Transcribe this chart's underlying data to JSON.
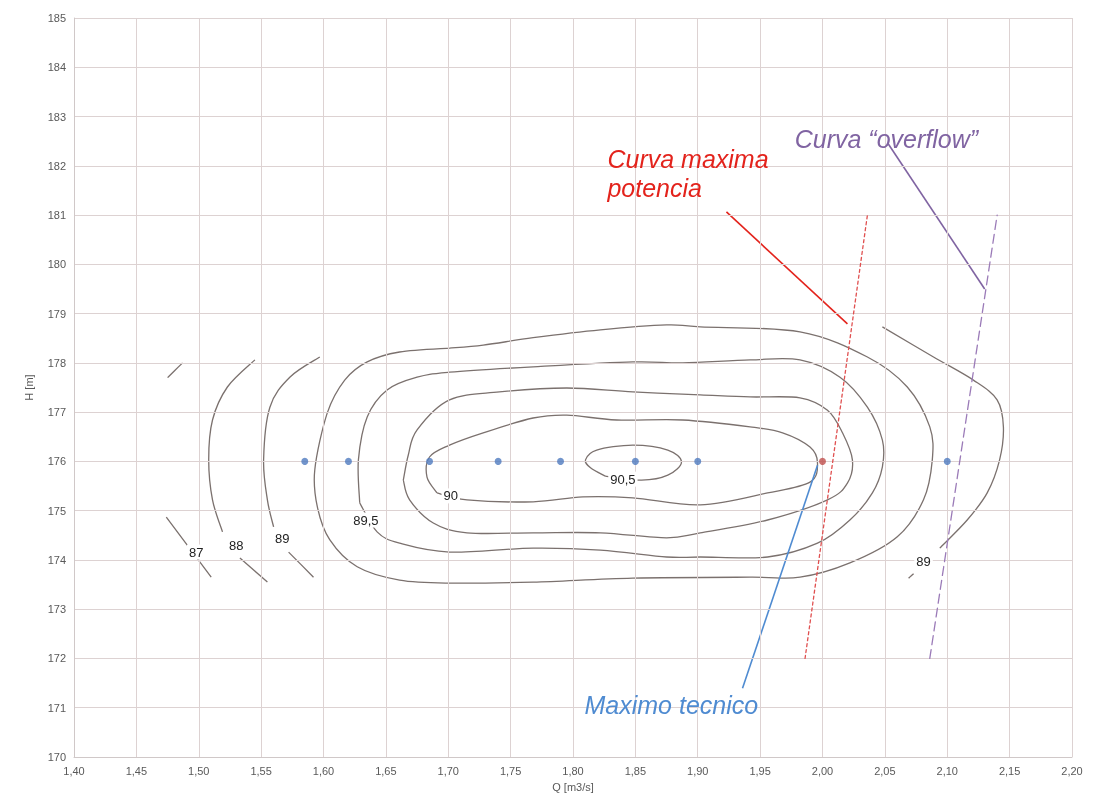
{
  "chart_data": {
    "type": "line",
    "xlabel": "Q [m3/s]",
    "ylabel": "H [m]",
    "xlim": [
      1.4,
      2.2
    ],
    "ylim": [
      170,
      185
    ],
    "xticks": [
      {
        "value": 1.4,
        "label": "1,40"
      },
      {
        "value": 1.45,
        "label": "1,45"
      },
      {
        "value": 1.5,
        "label": "1,50"
      },
      {
        "value": 1.55,
        "label": "1,55"
      },
      {
        "value": 1.6,
        "label": "1,60"
      },
      {
        "value": 1.65,
        "label": "1,65"
      },
      {
        "value": 1.7,
        "label": "1,70"
      },
      {
        "value": 1.75,
        "label": "1,75"
      },
      {
        "value": 1.8,
        "label": "1,80"
      },
      {
        "value": 1.85,
        "label": "1,85"
      },
      {
        "value": 1.9,
        "label": "1,90"
      },
      {
        "value": 1.95,
        "label": "1,95"
      },
      {
        "value": 2.0,
        "label": "2,00"
      },
      {
        "value": 2.05,
        "label": "2,05"
      },
      {
        "value": 2.1,
        "label": "2,10"
      },
      {
        "value": 2.15,
        "label": "2,15"
      },
      {
        "value": 2.2,
        "label": "2,20"
      }
    ],
    "yticks": [
      170,
      171,
      172,
      173,
      174,
      175,
      176,
      177,
      178,
      179,
      180,
      181,
      182,
      183,
      184,
      185
    ],
    "grid": true,
    "series": [
      {
        "color": "#e05050",
        "marker": "none",
        "line_style": "dotted",
        "x": [
          1.986,
          2.036
        ],
        "values": [
          172.0,
          181.0
        ]
      },
      {
        "color": "#9b7bb8",
        "marker": "none",
        "line_style": "dashed",
        "x": [
          2.086,
          2.14
        ],
        "values": [
          172.0,
          181.0
        ]
      },
      {
        "type": "scatter",
        "color": "#4f7bbf",
        "marker": "circle",
        "x": [
          1.585,
          1.62,
          1.685,
          1.74,
          1.79,
          1.85,
          1.9,
          2.1
        ],
        "values": [
          176,
          176,
          176,
          176,
          176,
          176,
          176,
          176
        ]
      },
      {
        "type": "scatter",
        "color": "#c0504d",
        "marker": "circle",
        "x": [
          2.0
        ],
        "values": [
          176
        ]
      }
    ],
    "annotations": [
      {
        "text": "87",
        "x": 1.498,
        "y": 174.16
      },
      {
        "text": "88",
        "x": 1.53,
        "y": 174.3
      },
      {
        "text": "89",
        "x": 1.567,
        "y": 174.43
      },
      {
        "text": "89,5",
        "x": 1.634,
        "y": 174.81
      },
      {
        "text": "90",
        "x": 1.702,
        "y": 175.3
      },
      {
        "text": "90,5",
        "x": 1.84,
        "y": 175.64
      },
      {
        "text": "89",
        "x": 2.081,
        "y": 173.96
      },
      {
        "text": "Curva maxima potencia",
        "x": 2.02,
        "y": 178.79
      },
      {
        "text": "Curva “overflow”",
        "x": 2.13,
        "y": 179.5
      },
      {
        "text": "Maximo tecnico",
        "x": 1.996,
        "y": 175.92
      }
    ]
  }
}
